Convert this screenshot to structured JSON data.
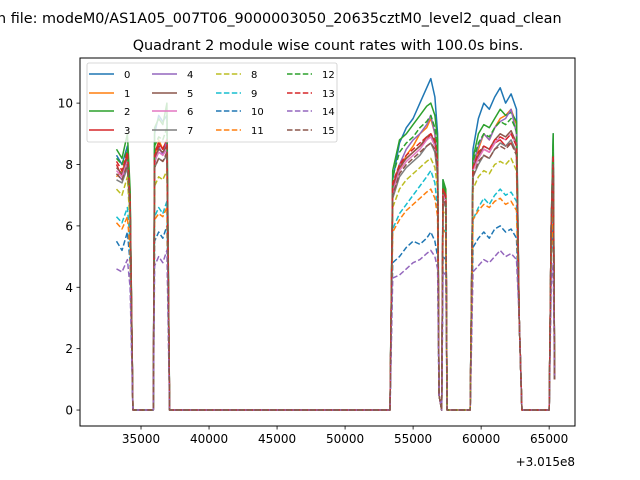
{
  "chart_data": {
    "type": "line",
    "suptitle": "n file: modeM0/AS1A05_007T06_9000003050_20635cztM0_level2_quad_clean",
    "title": "Quadrant 2 module wise count rates with 100.0s bins.",
    "xlabel": "",
    "ylabel": "",
    "x_offset_label": "+3.015e8",
    "xlim": [
      30515,
      66900
    ],
    "ylim": [
      -0.52,
      11.47
    ],
    "xticks": [
      35000,
      40000,
      45000,
      50000,
      55000,
      60000,
      65000
    ],
    "xtick_labels": [
      "35000",
      "40000",
      "45000",
      "50000",
      "55000",
      "60000",
      "65000"
    ],
    "yticks": [
      0,
      2,
      4,
      6,
      8,
      10
    ],
    "ytick_labels": [
      "0",
      "2",
      "4",
      "6",
      "8",
      "10"
    ],
    "grid": false,
    "legend_position": "top-left",
    "x": [
      33200,
      33600,
      34000,
      34200,
      34400,
      35000,
      35900,
      36000,
      36300,
      36600,
      36900,
      37100,
      45000,
      53300,
      53500,
      54000,
      54500,
      55000,
      55500,
      56000,
      56300,
      56600,
      56800,
      56900,
      57100,
      57200,
      57400,
      57500,
      58500,
      59200,
      59400,
      59800,
      60200,
      60600,
      61000,
      61400,
      61800,
      62200,
      62600,
      62800,
      63000,
      65000,
      65150,
      65300,
      65400
    ],
    "series": [
      {
        "name": "0",
        "color": "#1f77b4",
        "dashed": false,
        "values": [
          8.3,
          8.0,
          8.6,
          7.0,
          0,
          0,
          0,
          9.0,
          9.6,
          9.4,
          9.6,
          0,
          0,
          0,
          7.5,
          8.7,
          9.2,
          9.5,
          10.0,
          10.5,
          10.8,
          10.2,
          9.0,
          0.5,
          0,
          7.5,
          7.0,
          0,
          0,
          0,
          8.5,
          9.5,
          10.0,
          9.8,
          10.2,
          10.5,
          10.0,
          10.3,
          9.8,
          3,
          0,
          0,
          6,
          9.0,
          1
        ]
      },
      {
        "name": "1",
        "color": "#ff7f0e",
        "dashed": false,
        "values": [
          7.6,
          7.8,
          8.2,
          6.5,
          0,
          0,
          0,
          8.2,
          8.8,
          8.5,
          8.8,
          0,
          0,
          0,
          7.0,
          7.8,
          8.3,
          8.6,
          9.0,
          9.2,
          9.5,
          9.0,
          8.2,
          0.5,
          0,
          7.0,
          6.8,
          0,
          0,
          0,
          7.8,
          8.5,
          9.0,
          8.8,
          9.2,
          9.5,
          9.6,
          9.8,
          9.3,
          3,
          0,
          0,
          6,
          8.3,
          1
        ]
      },
      {
        "name": "2",
        "color": "#2ca02c",
        "dashed": false,
        "values": [
          8.5,
          8.2,
          9.0,
          7.2,
          0,
          0,
          0,
          9.2,
          9.5,
          9.3,
          10.0,
          0,
          0,
          0,
          7.8,
          8.8,
          9.0,
          9.3,
          9.6,
          9.9,
          10.0,
          9.6,
          8.8,
          0.5,
          0,
          7.5,
          7.2,
          0,
          0,
          0,
          8.2,
          9.0,
          9.3,
          9.2,
          9.5,
          9.8,
          9.6,
          9.7,
          9.4,
          3,
          0,
          0,
          6,
          9.0,
          1
        ]
      },
      {
        "name": "3",
        "color": "#d62728",
        "dashed": false,
        "values": [
          8.0,
          7.6,
          8.4,
          6.8,
          0,
          0,
          0,
          8.4,
          8.7,
          8.5,
          8.8,
          0,
          0,
          0,
          7.3,
          8.0,
          8.2,
          8.4,
          8.6,
          8.8,
          9.0,
          8.7,
          8.0,
          0.5,
          0,
          7.2,
          7.0,
          0,
          0,
          0,
          7.8,
          8.3,
          8.5,
          8.4,
          8.7,
          8.8,
          8.6,
          8.7,
          8.4,
          3,
          0,
          0,
          6,
          8.2,
          1
        ]
      },
      {
        "name": "4",
        "color": "#9467bd",
        "dashed": false,
        "values": [
          7.7,
          7.5,
          8.0,
          6.5,
          0,
          0,
          0,
          8.0,
          8.6,
          8.3,
          8.8,
          0,
          0,
          0,
          7.0,
          8.0,
          8.5,
          8.8,
          9.0,
          9.3,
          9.6,
          9.0,
          8.0,
          0.5,
          0,
          7.0,
          6.8,
          0,
          0,
          0,
          8.0,
          8.6,
          9.0,
          8.8,
          9.2,
          9.4,
          9.5,
          9.8,
          9.0,
          3,
          0,
          0,
          6,
          8.4,
          1
        ]
      },
      {
        "name": "5",
        "color": "#8c564b",
        "dashed": false,
        "values": [
          7.9,
          7.7,
          8.2,
          6.6,
          0,
          0,
          0,
          8.2,
          8.5,
          8.4,
          8.6,
          0,
          0,
          0,
          7.2,
          7.9,
          8.2,
          8.4,
          8.6,
          8.9,
          9.0,
          8.7,
          7.9,
          0.5,
          0,
          7.1,
          6.9,
          0,
          0,
          0,
          7.9,
          8.3,
          8.6,
          8.5,
          8.8,
          9.0,
          8.9,
          9.1,
          8.7,
          3,
          0,
          0,
          6,
          8.3,
          1
        ]
      },
      {
        "name": "6",
        "color": "#e377c2",
        "dashed": false,
        "values": [
          7.8,
          7.6,
          8.1,
          6.5,
          0,
          0,
          0,
          8.1,
          8.4,
          8.3,
          8.5,
          0,
          0,
          0,
          7.1,
          7.8,
          8.1,
          8.3,
          8.5,
          8.8,
          8.9,
          8.6,
          7.8,
          0.5,
          0,
          7.0,
          6.8,
          0,
          0,
          0,
          7.8,
          8.2,
          8.5,
          8.4,
          8.7,
          8.9,
          8.8,
          9.0,
          8.6,
          3,
          0,
          0,
          6,
          8.2,
          1
        ]
      },
      {
        "name": "7",
        "color": "#7f7f7f",
        "dashed": false,
        "values": [
          7.5,
          7.4,
          7.9,
          6.3,
          0,
          0,
          0,
          7.9,
          8.2,
          8.1,
          8.3,
          0,
          0,
          0,
          6.9,
          7.6,
          7.9,
          8.1,
          8.3,
          8.6,
          8.7,
          8.4,
          7.6,
          0.5,
          0,
          6.8,
          6.6,
          0,
          0,
          0,
          7.6,
          8.0,
          8.3,
          8.2,
          8.5,
          8.7,
          8.6,
          8.8,
          8.4,
          3,
          0,
          0,
          6,
          8.0,
          1
        ]
      },
      {
        "name": "8",
        "color": "#bcbd22",
        "dashed": true,
        "values": [
          7.2,
          7.0,
          7.6,
          6.0,
          0,
          0,
          0,
          7.3,
          7.6,
          7.5,
          7.8,
          0,
          0,
          0,
          6.6,
          7.2,
          7.5,
          7.7,
          7.9,
          8.1,
          8.2,
          7.9,
          7.2,
          0.5,
          0,
          6.5,
          6.3,
          0,
          0,
          0,
          7.2,
          7.6,
          7.8,
          7.7,
          8.0,
          8.1,
          8.0,
          8.2,
          7.8,
          3,
          0,
          0,
          6,
          7.6,
          1
        ]
      },
      {
        "name": "9",
        "color": "#17becf",
        "dashed": true,
        "values": [
          6.3,
          6.1,
          6.6,
          5.5,
          0,
          0,
          0,
          6.3,
          6.6,
          6.4,
          6.8,
          0,
          0,
          0,
          5.9,
          6.4,
          6.7,
          7.0,
          7.3,
          7.6,
          7.8,
          7.4,
          6.5,
          0.5,
          0,
          6.0,
          5.8,
          0,
          0,
          0,
          6.2,
          6.6,
          6.9,
          6.7,
          7.0,
          7.2,
          7.0,
          7.1,
          6.8,
          3,
          0,
          0,
          5,
          6.8,
          1
        ]
      },
      {
        "name": "10",
        "color": "#1f77b4",
        "dashed": true,
        "values": [
          5.5,
          5.2,
          5.8,
          4.8,
          0,
          0,
          0,
          5.5,
          5.8,
          5.6,
          6.0,
          0,
          0,
          0,
          4.8,
          5.0,
          5.3,
          5.5,
          5.4,
          5.6,
          5.8,
          5.5,
          5.0,
          0.5,
          0,
          5.0,
          4.9,
          0,
          0,
          0,
          5.3,
          5.6,
          5.8,
          5.6,
          5.9,
          6.0,
          5.8,
          5.9,
          5.6,
          3,
          0,
          0,
          5,
          6.0,
          1
        ]
      },
      {
        "name": "11",
        "color": "#ff7f0e",
        "dashed": true,
        "values": [
          6.1,
          5.9,
          6.3,
          5.2,
          0,
          0,
          0,
          6.2,
          6.4,
          6.3,
          6.6,
          0,
          0,
          0,
          5.8,
          6.2,
          6.5,
          6.7,
          6.9,
          7.1,
          7.2,
          6.9,
          6.3,
          0.5,
          0,
          5.9,
          5.7,
          0,
          0,
          0,
          6.2,
          6.5,
          6.7,
          6.6,
          6.8,
          6.9,
          6.7,
          6.8,
          6.5,
          3,
          0,
          0,
          5,
          6.6,
          1
        ]
      },
      {
        "name": "12",
        "color": "#2ca02c",
        "dashed": true,
        "values": [
          8.2,
          8.0,
          8.5,
          6.9,
          0,
          0,
          0,
          8.6,
          8.9,
          8.8,
          9.2,
          0,
          0,
          0,
          7.6,
          8.4,
          8.7,
          8.9,
          9.2,
          9.4,
          9.6,
          9.2,
          8.4,
          0.5,
          0,
          7.3,
          7.1,
          0,
          0,
          0,
          8.1,
          8.7,
          9.0,
          8.9,
          9.2,
          9.4,
          9.3,
          9.5,
          9.1,
          3,
          0,
          0,
          6,
          8.7,
          1
        ]
      },
      {
        "name": "13",
        "color": "#d62728",
        "dashed": true,
        "values": [
          8.1,
          7.8,
          8.4,
          6.8,
          0,
          0,
          0,
          8.3,
          8.6,
          8.5,
          8.8,
          0,
          0,
          0,
          7.4,
          8.0,
          8.3,
          8.5,
          8.7,
          8.9,
          9.0,
          8.8,
          8.1,
          0.5,
          0,
          7.2,
          7.0,
          0,
          0,
          0,
          7.9,
          8.4,
          8.6,
          8.5,
          8.8,
          8.9,
          8.8,
          9.0,
          8.6,
          3,
          0,
          0,
          6,
          8.3,
          1
        ]
      },
      {
        "name": "14",
        "color": "#9467bd",
        "dashed": true,
        "values": [
          4.6,
          4.5,
          4.9,
          4.0,
          0,
          0,
          0,
          4.7,
          5.0,
          4.8,
          5.2,
          0,
          0,
          0,
          4.3,
          4.4,
          4.6,
          4.8,
          4.9,
          5.1,
          5.2,
          5.0,
          4.6,
          0.5,
          0,
          4.5,
          4.4,
          0,
          0,
          0,
          4.5,
          4.7,
          4.9,
          4.8,
          5.0,
          5.2,
          5.0,
          5.1,
          4.9,
          3,
          0,
          0,
          4,
          4.8,
          1
        ]
      },
      {
        "name": "15",
        "color": "#8c564b",
        "dashed": true,
        "values": [
          7.7,
          7.5,
          8.0,
          6.5,
          0,
          0,
          0,
          7.9,
          8.2,
          8.1,
          8.4,
          0,
          0,
          0,
          7.0,
          7.7,
          8.0,
          8.2,
          8.4,
          8.6,
          8.7,
          8.5,
          7.8,
          0.5,
          0,
          6.9,
          6.7,
          0,
          0,
          0,
          7.6,
          8.1,
          8.3,
          8.2,
          8.5,
          8.6,
          8.5,
          8.7,
          8.3,
          3,
          0,
          0,
          6,
          8.0,
          1
        ]
      }
    ]
  }
}
